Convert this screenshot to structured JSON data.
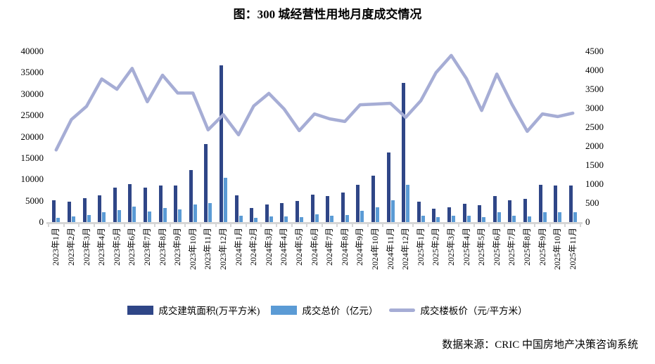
{
  "title": "图：300 城经营性用地月度成交情况",
  "source": "数据来源：CRIC 中国房地产决策咨询系统",
  "left_axis": {
    "ticks": [
      "40000",
      "35000",
      "30000",
      "25000",
      "20000",
      "15000",
      "10000",
      "5000",
      "0"
    ],
    "max": 40000
  },
  "right_axis": {
    "ticks": [
      "4500",
      "4000",
      "3500",
      "3000",
      "2500",
      "2000",
      "1500",
      "1000",
      "500",
      "0"
    ],
    "max": 4500
  },
  "colors": {
    "axis_gray": "#d6d6d6",
    "text": "#000000"
  },
  "chart_data": {
    "type": "bar+line",
    "title": "图：300 城经营性用地月度成交情况",
    "grid": false,
    "legend_position": "bottom",
    "left_ylim": [
      0,
      40000
    ],
    "right_ylim": [
      0,
      4500
    ],
    "categories": [
      "2023年1月",
      "2023年2月",
      "2023年3月",
      "2023年4月",
      "2023年5月",
      "2023年6月",
      "2023年7月",
      "2023年8月",
      "2023年9月",
      "2023年10月",
      "2023年11月",
      "2023年12月",
      "2024年1月",
      "2024年2月",
      "2024年3月",
      "2024年4月",
      "2024年5月",
      "2024年6月",
      "2024年7月",
      "2024年8月",
      "2024年9月",
      "2024年10月",
      "2024年11月",
      "2024年12月",
      "2025年1月",
      "2025年2月",
      "2025年3月",
      "2025年4月",
      "2025年5月",
      "2025年6月",
      "2025年7月",
      "2025年8月",
      "2025年9月",
      "2025年10月",
      "2025年11月"
    ],
    "series": [
      {
        "name": "成交建筑面积(万平方米)",
        "type": "bar",
        "axis": "left",
        "color": "#2f4687",
        "values": [
          5100,
          4800,
          5600,
          6300,
          8100,
          8900,
          8100,
          8600,
          8500,
          12200,
          18200,
          36700,
          6300,
          3300,
          4100,
          4400,
          4900,
          6400,
          6100,
          6900,
          8700,
          10900,
          16300,
          32600,
          4800,
          3100,
          3500,
          4300,
          4000,
          6100,
          5100,
          5500,
          8800,
          8600,
          8500
        ]
      },
      {
        "name": "成交总价（亿元）",
        "type": "bar",
        "axis": "left",
        "color": "#5b9bd5",
        "values": [
          1000,
          1300,
          1700,
          2350,
          2800,
          3600,
          2550,
          3300,
          2900,
          4200,
          4450,
          10400,
          1500,
          1000,
          1400,
          1300,
          1150,
          1750,
          1550,
          1700,
          2600,
          3450,
          5100,
          8800,
          1500,
          1200,
          1550,
          1450,
          1100,
          2250,
          1550,
          1250,
          2300,
          2350,
          2300
        ]
      },
      {
        "name": "成交楼板价（元/平方米）",
        "type": "line",
        "axis": "right",
        "color": "#a6add5",
        "values": [
          1900,
          2700,
          3050,
          3770,
          3500,
          4050,
          3170,
          3870,
          3400,
          3400,
          2430,
          2830,
          2300,
          3060,
          3390,
          2980,
          2410,
          2850,
          2720,
          2650,
          3090,
          3110,
          3130,
          2760,
          3200,
          3940,
          4390,
          3780,
          2940,
          3900,
          3100,
          2390,
          2850,
          2780,
          2870
        ]
      }
    ]
  }
}
